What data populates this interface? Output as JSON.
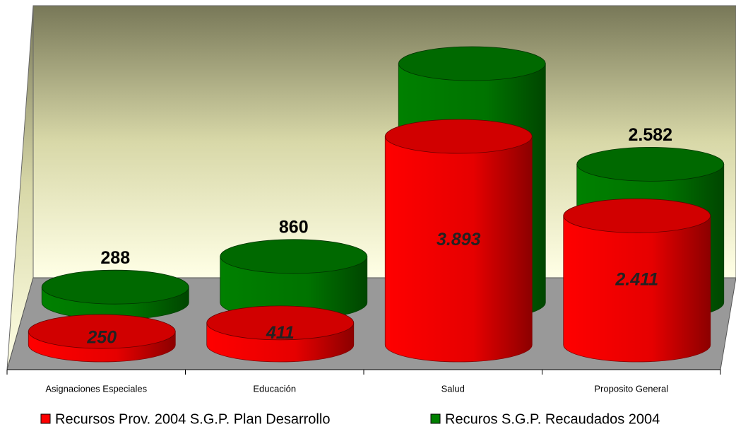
{
  "chart_data": {
    "type": "cylinder_bar",
    "categories": [
      "Asignaciones Especiales",
      "Educación",
      "Salud",
      "Proposito General"
    ],
    "series": [
      {
        "name": "Recursos Prov. 2004 S.G.P. Plan Desarrollo",
        "color": "#ff0000",
        "values": [
          250,
          411,
          3893,
          2411
        ],
        "value_labels": [
          "250",
          "411",
          "3.893",
          "2.411"
        ]
      },
      {
        "name": "Recuros S.G.P. Recaudados 2004",
        "color": "#008000",
        "values": [
          288,
          860,
          4460,
          2582
        ],
        "value_labels": [
          "288",
          "860",
          null,
          "2.582"
        ]
      }
    ],
    "ylim": [
      0,
      5000
    ]
  }
}
